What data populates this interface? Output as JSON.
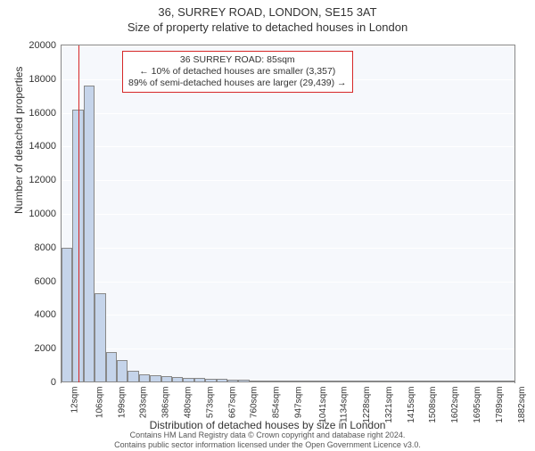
{
  "title": "36, SURREY ROAD, LONDON, SE15 3AT",
  "subtitle": "Size of property relative to detached houses in London",
  "ylabel": "Number of detached properties",
  "xlabel": "Distribution of detached houses by size in London",
  "chart": {
    "type": "histogram",
    "background_color": "#f6f8fc",
    "grid_color": "#ffffff",
    "border_color": "#888888",
    "bar_fill": "#c5d4ea",
    "bar_border": "#888888",
    "marker_color": "#d62728",
    "ylim": [
      0,
      20000
    ],
    "yticks": [
      0,
      2000,
      4000,
      6000,
      8000,
      10000,
      12000,
      14000,
      16000,
      18000,
      20000
    ],
    "xmin_sqm": 12,
    "xmax_sqm": 1929,
    "xticks_sqm": [
      12,
      106,
      199,
      293,
      386,
      480,
      573,
      667,
      760,
      854,
      947,
      1041,
      1134,
      1228,
      1321,
      1415,
      1508,
      1602,
      1695,
      1789,
      1882
    ],
    "xtick_labels": [
      "12sqm",
      "106sqm",
      "199sqm",
      "293sqm",
      "386sqm",
      "480sqm",
      "573sqm",
      "667sqm",
      "760sqm",
      "854sqm",
      "947sqm",
      "1041sqm",
      "1134sqm",
      "1228sqm",
      "1321sqm",
      "1415sqm",
      "1508sqm",
      "1602sqm",
      "1695sqm",
      "1789sqm",
      "1882sqm"
    ],
    "bin_edges_sqm": [
      12,
      59,
      106,
      153,
      199,
      246,
      293,
      340,
      386,
      433,
      480,
      527,
      573,
      620,
      667,
      714,
      760,
      807,
      854,
      901,
      947,
      994,
      1041,
      1088,
      1134,
      1181,
      1228,
      1275,
      1321,
      1368,
      1415,
      1462,
      1508,
      1555,
      1602,
      1649,
      1695,
      1742,
      1789,
      1836,
      1882,
      1929
    ],
    "bin_counts": [
      8000,
      16200,
      17600,
      5300,
      1800,
      1300,
      700,
      500,
      420,
      380,
      320,
      280,
      250,
      220,
      200,
      180,
      150,
      130,
      120,
      110,
      100,
      90,
      80,
      70,
      60,
      50,
      45,
      40,
      35,
      30,
      28,
      25,
      22,
      20,
      18,
      16,
      14,
      12,
      10,
      8,
      6
    ],
    "bar_width_ratio": 1.0,
    "marker_sqm": 85
  },
  "annotation": {
    "line1": "36 SURREY ROAD: 85sqm",
    "line2": "← 10% of detached houses are smaller (3,357)",
    "line3": "89% of semi-detached houses are larger (29,439) →",
    "annotation_border": "#d62728",
    "annotation_bg": "#ffffff",
    "fontsize": 10.5
  },
  "footer": {
    "line1": "Contains HM Land Registry data © Crown copyright and database right 2024.",
    "line2": "Contains public sector information licensed under the Open Government Licence v3.0."
  },
  "fonts": {
    "title_size": 13,
    "label_size": 12,
    "tick_size": 11
  }
}
